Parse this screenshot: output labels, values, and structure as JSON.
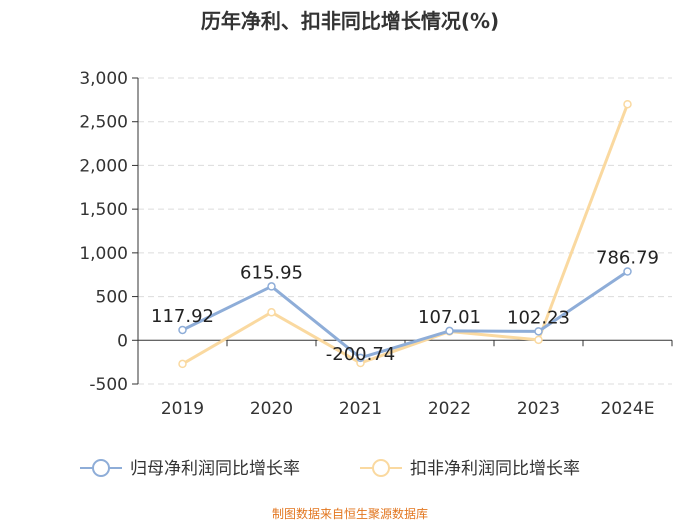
{
  "chart_data": {
    "type": "line",
    "title": "历年净利、扣非同比增长情况(%)",
    "categories": [
      "2019",
      "2020",
      "2021",
      "2022",
      "2023",
      "2024E"
    ],
    "yticks": [
      "3,000",
      "2,500",
      "2,000",
      "1,500",
      "1,000",
      "500",
      "0",
      "-500"
    ],
    "ylim": [
      -500,
      3000
    ],
    "ytick_values": [
      3000,
      2500,
      2000,
      1500,
      1000,
      500,
      0,
      -500
    ],
    "grid": true,
    "series": [
      {
        "name": "归母净利润同比增长率",
        "color": "#8eadd8",
        "values": [
          117.92,
          615.95,
          -200.74,
          107.01,
          102.23,
          786.79
        ],
        "labels": [
          "117.92",
          "615.95",
          "-200.74",
          "107.01",
          "102.23",
          "786.79"
        ]
      },
      {
        "name": "扣非净利润同比增长率",
        "color": "#fad9a0",
        "values": [
          -270,
          320,
          -260,
          100,
          5,
          2700
        ]
      }
    ],
    "legend_position": "bottom",
    "source": "制图数据来自恒生聚源数据库"
  }
}
